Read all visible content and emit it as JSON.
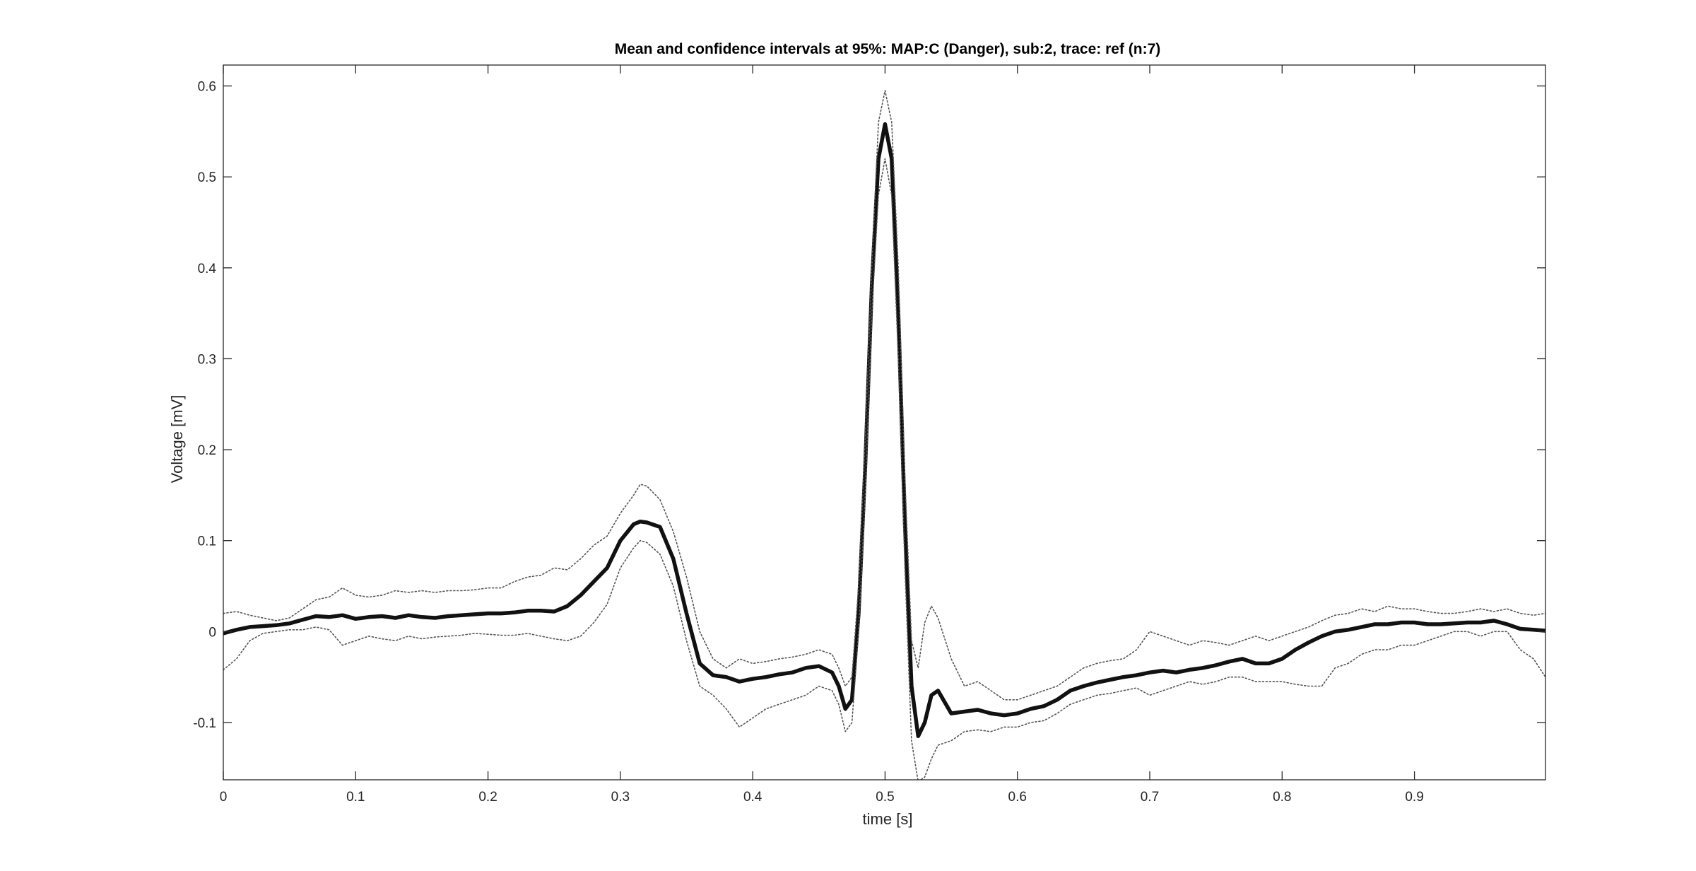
{
  "chart_data": {
    "type": "line",
    "title": "Mean and confidence intervals at 95%: MAP:C (Danger), sub:2, trace: ref (n:7)",
    "xlabel": "time [s]",
    "ylabel": "Voltage [mV]",
    "xlim": [
      0,
      0.999
    ],
    "ylim": [
      -0.163,
      0.623
    ],
    "x_ticks": [
      0,
      0.1,
      0.2,
      0.3,
      0.4,
      0.5,
      0.6,
      0.7,
      0.8,
      0.9
    ],
    "x_tick_labels": [
      "0",
      "0.1",
      "0.2",
      "0.3",
      "0.4",
      "0.5",
      "0.6",
      "0.7",
      "0.8",
      "0.9"
    ],
    "y_ticks": [
      -0.1,
      0,
      0.1,
      0.2,
      0.3,
      0.4,
      0.5,
      0.6
    ],
    "y_tick_labels": [
      "-0.1",
      "0",
      "0.1",
      "0.2",
      "0.3",
      "0.4",
      "0.5",
      "0.6"
    ],
    "grid": false,
    "series": [
      {
        "style": "mean",
        "color": "#111111",
        "x": [
          0,
          0.01,
          0.02,
          0.03,
          0.04,
          0.05,
          0.06,
          0.07,
          0.08,
          0.09,
          0.1,
          0.11,
          0.12,
          0.13,
          0.14,
          0.15,
          0.16,
          0.17,
          0.18,
          0.19,
          0.2,
          0.21,
          0.22,
          0.23,
          0.24,
          0.25,
          0.26,
          0.27,
          0.28,
          0.29,
          0.3,
          0.31,
          0.315,
          0.32,
          0.33,
          0.34,
          0.35,
          0.36,
          0.37,
          0.38,
          0.39,
          0.4,
          0.41,
          0.42,
          0.43,
          0.44,
          0.45,
          0.46,
          0.465,
          0.47,
          0.475,
          0.48,
          0.485,
          0.49,
          0.495,
          0.5,
          0.505,
          0.51,
          0.515,
          0.52,
          0.525,
          0.53,
          0.535,
          0.54,
          0.55,
          0.56,
          0.57,
          0.58,
          0.59,
          0.6,
          0.61,
          0.62,
          0.63,
          0.64,
          0.65,
          0.66,
          0.67,
          0.68,
          0.69,
          0.7,
          0.71,
          0.72,
          0.73,
          0.74,
          0.75,
          0.76,
          0.77,
          0.78,
          0.79,
          0.8,
          0.81,
          0.82,
          0.83,
          0.84,
          0.85,
          0.86,
          0.87,
          0.88,
          0.89,
          0.9,
          0.91,
          0.92,
          0.93,
          0.94,
          0.95,
          0.96,
          0.97,
          0.98,
          0.99,
          0.999
        ],
        "y": [
          -0.002,
          0.002,
          0.005,
          0.006,
          0.007,
          0.009,
          0.013,
          0.017,
          0.016,
          0.018,
          0.014,
          0.016,
          0.017,
          0.015,
          0.018,
          0.016,
          0.015,
          0.017,
          0.018,
          0.019,
          0.02,
          0.02,
          0.021,
          0.023,
          0.023,
          0.022,
          0.028,
          0.04,
          0.055,
          0.07,
          0.1,
          0.118,
          0.121,
          0.12,
          0.115,
          0.08,
          0.02,
          -0.035,
          -0.048,
          -0.05,
          -0.055,
          -0.052,
          -0.05,
          -0.047,
          -0.045,
          -0.04,
          -0.038,
          -0.045,
          -0.06,
          -0.085,
          -0.075,
          0.02,
          0.18,
          0.38,
          0.52,
          0.558,
          0.52,
          0.35,
          0.12,
          -0.06,
          -0.115,
          -0.1,
          -0.07,
          -0.065,
          -0.09,
          -0.088,
          -0.086,
          -0.09,
          -0.092,
          -0.09,
          -0.085,
          -0.082,
          -0.075,
          -0.065,
          -0.06,
          -0.056,
          -0.053,
          -0.05,
          -0.048,
          -0.045,
          -0.043,
          -0.045,
          -0.042,
          -0.04,
          -0.037,
          -0.033,
          -0.03,
          -0.035,
          -0.035,
          -0.03,
          -0.02,
          -0.012,
          -0.005,
          0.0,
          0.002,
          0.005,
          0.008,
          0.008,
          0.01,
          0.01,
          0.008,
          0.008,
          0.009,
          0.01,
          0.01,
          0.012,
          0.008,
          0.003,
          0.002,
          0.001
        ]
      },
      {
        "style": "upper-ci",
        "color": "#555555",
        "x": [
          0,
          0.01,
          0.02,
          0.03,
          0.04,
          0.05,
          0.06,
          0.07,
          0.08,
          0.09,
          0.1,
          0.11,
          0.12,
          0.13,
          0.14,
          0.15,
          0.16,
          0.17,
          0.18,
          0.19,
          0.2,
          0.21,
          0.22,
          0.23,
          0.24,
          0.25,
          0.26,
          0.27,
          0.28,
          0.29,
          0.3,
          0.31,
          0.315,
          0.32,
          0.33,
          0.34,
          0.35,
          0.36,
          0.37,
          0.38,
          0.39,
          0.4,
          0.41,
          0.42,
          0.43,
          0.44,
          0.45,
          0.46,
          0.465,
          0.47,
          0.475,
          0.48,
          0.485,
          0.49,
          0.495,
          0.5,
          0.505,
          0.51,
          0.515,
          0.52,
          0.525,
          0.53,
          0.535,
          0.54,
          0.55,
          0.56,
          0.57,
          0.58,
          0.59,
          0.6,
          0.61,
          0.62,
          0.63,
          0.64,
          0.65,
          0.66,
          0.67,
          0.68,
          0.69,
          0.7,
          0.71,
          0.72,
          0.73,
          0.74,
          0.75,
          0.76,
          0.77,
          0.78,
          0.79,
          0.8,
          0.81,
          0.82,
          0.83,
          0.84,
          0.85,
          0.86,
          0.87,
          0.88,
          0.89,
          0.9,
          0.91,
          0.92,
          0.93,
          0.94,
          0.95,
          0.96,
          0.97,
          0.98,
          0.99,
          0.999
        ],
        "y": [
          0.02,
          0.022,
          0.018,
          0.015,
          0.012,
          0.015,
          0.025,
          0.035,
          0.038,
          0.048,
          0.04,
          0.038,
          0.04,
          0.045,
          0.043,
          0.045,
          0.043,
          0.045,
          0.045,
          0.046,
          0.048,
          0.048,
          0.055,
          0.06,
          0.062,
          0.07,
          0.068,
          0.08,
          0.095,
          0.105,
          0.13,
          0.15,
          0.162,
          0.16,
          0.145,
          0.11,
          0.06,
          0.0,
          -0.03,
          -0.04,
          -0.03,
          -0.035,
          -0.033,
          -0.03,
          -0.028,
          -0.025,
          -0.02,
          -0.025,
          -0.04,
          -0.06,
          -0.05,
          0.05,
          0.21,
          0.4,
          0.56,
          0.595,
          0.56,
          0.4,
          0.17,
          -0.01,
          -0.04,
          0.01,
          0.028,
          0.015,
          -0.03,
          -0.06,
          -0.055,
          -0.065,
          -0.075,
          -0.075,
          -0.07,
          -0.065,
          -0.06,
          -0.05,
          -0.04,
          -0.035,
          -0.032,
          -0.03,
          -0.02,
          0.0,
          -0.005,
          -0.01,
          -0.015,
          -0.01,
          -0.012,
          -0.015,
          -0.01,
          -0.005,
          -0.01,
          -0.005,
          0.0,
          0.005,
          0.012,
          0.018,
          0.02,
          0.025,
          0.022,
          0.028,
          0.025,
          0.025,
          0.022,
          0.02,
          0.02,
          0.022,
          0.025,
          0.022,
          0.025,
          0.02,
          0.018,
          0.02
        ]
      },
      {
        "style": "lower-ci",
        "color": "#555555",
        "x": [
          0,
          0.01,
          0.02,
          0.03,
          0.04,
          0.05,
          0.06,
          0.07,
          0.08,
          0.09,
          0.1,
          0.11,
          0.12,
          0.13,
          0.14,
          0.15,
          0.16,
          0.17,
          0.18,
          0.19,
          0.2,
          0.21,
          0.22,
          0.23,
          0.24,
          0.25,
          0.26,
          0.27,
          0.28,
          0.29,
          0.3,
          0.31,
          0.315,
          0.32,
          0.33,
          0.34,
          0.35,
          0.36,
          0.37,
          0.38,
          0.39,
          0.4,
          0.41,
          0.42,
          0.43,
          0.44,
          0.45,
          0.46,
          0.465,
          0.47,
          0.475,
          0.48,
          0.485,
          0.49,
          0.495,
          0.5,
          0.505,
          0.51,
          0.515,
          0.52,
          0.525,
          0.53,
          0.535,
          0.54,
          0.55,
          0.56,
          0.57,
          0.58,
          0.59,
          0.6,
          0.61,
          0.62,
          0.63,
          0.64,
          0.65,
          0.66,
          0.67,
          0.68,
          0.69,
          0.7,
          0.71,
          0.72,
          0.73,
          0.74,
          0.75,
          0.76,
          0.77,
          0.78,
          0.79,
          0.8,
          0.81,
          0.82,
          0.83,
          0.84,
          0.85,
          0.86,
          0.87,
          0.88,
          0.89,
          0.9,
          0.91,
          0.92,
          0.93,
          0.94,
          0.95,
          0.96,
          0.97,
          0.98,
          0.99,
          0.999
        ],
        "y": [
          -0.042,
          -0.03,
          -0.01,
          -0.002,
          0.0,
          0.002,
          0.002,
          0.005,
          0.002,
          -0.015,
          -0.01,
          -0.005,
          -0.008,
          -0.01,
          -0.005,
          -0.008,
          -0.006,
          -0.005,
          -0.004,
          -0.002,
          -0.003,
          -0.004,
          -0.004,
          -0.002,
          -0.005,
          -0.008,
          -0.01,
          -0.005,
          0.01,
          0.03,
          0.07,
          0.092,
          0.1,
          0.098,
          0.085,
          0.05,
          -0.01,
          -0.06,
          -0.07,
          -0.085,
          -0.105,
          -0.095,
          -0.085,
          -0.08,
          -0.075,
          -0.07,
          -0.06,
          -0.065,
          -0.08,
          -0.11,
          -0.1,
          0.0,
          0.15,
          0.35,
          0.48,
          0.52,
          0.48,
          0.3,
          0.07,
          -0.12,
          -0.165,
          -0.16,
          -0.14,
          -0.125,
          -0.12,
          -0.11,
          -0.108,
          -0.11,
          -0.105,
          -0.105,
          -0.1,
          -0.098,
          -0.09,
          -0.08,
          -0.075,
          -0.07,
          -0.068,
          -0.065,
          -0.062,
          -0.07,
          -0.065,
          -0.06,
          -0.055,
          -0.058,
          -0.055,
          -0.05,
          -0.05,
          -0.055,
          -0.055,
          -0.055,
          -0.058,
          -0.06,
          -0.06,
          -0.04,
          -0.035,
          -0.025,
          -0.02,
          -0.02,
          -0.015,
          -0.015,
          -0.01,
          -0.005,
          0.0,
          0.0,
          -0.005,
          0.0,
          0.0,
          -0.02,
          -0.03,
          -0.05
        ]
      }
    ]
  }
}
